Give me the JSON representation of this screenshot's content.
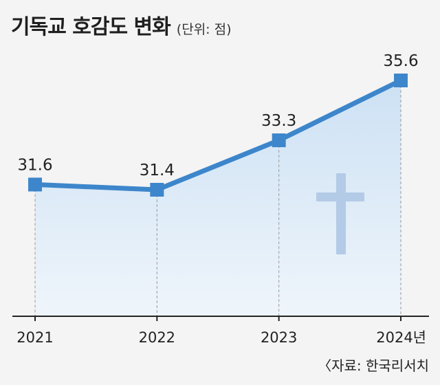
{
  "header": {
    "title": "기독교 호감도 변화",
    "unit": "(단위: 점)"
  },
  "source": "〈자료: 한국리서치",
  "chart_data": {
    "type": "line",
    "categories": [
      "2021",
      "2022",
      "2023",
      "2024년"
    ],
    "series": [
      {
        "values": [
          31.6,
          31.4,
          33.3,
          35.6
        ]
      }
    ],
    "data_labels": [
      "31.6",
      "31.4",
      "33.3",
      "35.6"
    ],
    "colors": {
      "line": "#3d86cb",
      "marker": "#3d86cb",
      "area_top": "#c6def4",
      "area_bottom": "#eef5fc",
      "cross": "#b3cbe6",
      "axis": "#222222",
      "gridline": "#999999"
    },
    "grid": false,
    "area_fill": true,
    "decoration": "cross-icon"
  }
}
